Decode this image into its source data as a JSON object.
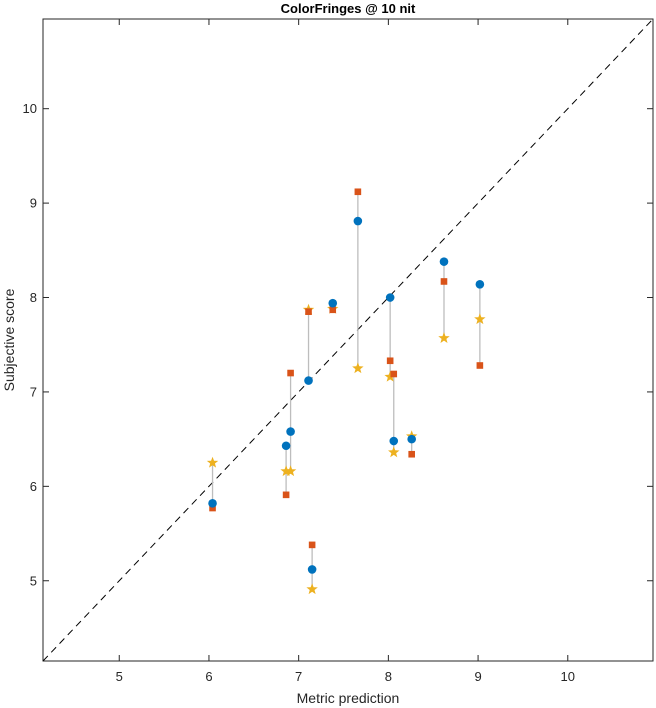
{
  "chart_data": {
    "type": "scatter",
    "title": "ColorFringes @ 10 nit",
    "xlabel": "Metric prediction",
    "ylabel": "Subjective score",
    "xlim": [
      4.15,
      10.95
    ],
    "ylim": [
      4.15,
      10.95
    ],
    "xticks": [
      5,
      6,
      7,
      8,
      9,
      10
    ],
    "yticks": [
      5,
      6,
      7,
      8,
      9,
      10
    ],
    "xtick_labels": [
      "5",
      "6",
      "7",
      "8",
      "9",
      "10"
    ],
    "ytick_labels": [
      "5",
      "6",
      "7",
      "8",
      "9",
      "10"
    ],
    "reference_line": {
      "style": "dashed",
      "color": "#000000",
      "from": [
        4.15,
        4.15
      ],
      "to": [
        10.95,
        10.95
      ]
    },
    "connector_color": "#bdbdbd",
    "grid": false,
    "legend": false,
    "points": [
      {
        "x": 6.04,
        "circle": 5.82,
        "square": 5.77,
        "star": 6.25
      },
      {
        "x": 6.86,
        "circle": 6.43,
        "square": 5.91,
        "star": 6.16
      },
      {
        "x": 6.91,
        "circle": 6.58,
        "square": 7.2,
        "star": 6.16
      },
      {
        "x": 7.11,
        "circle": 7.12,
        "square": 7.85,
        "star": 7.87
      },
      {
        "x": 7.15,
        "circle": 5.12,
        "square": 5.38,
        "star": 4.91
      },
      {
        "x": 7.38,
        "circle": 7.94,
        "square": 7.87,
        "star": 7.88
      },
      {
        "x": 7.66,
        "circle": 8.81,
        "square": 9.12,
        "star": 7.25
      },
      {
        "x": 8.02,
        "circle": 8.0,
        "square": 7.33,
        "star": 7.16
      },
      {
        "x": 8.06,
        "circle": 6.48,
        "square": 7.19,
        "star": 6.36
      },
      {
        "x": 8.26,
        "circle": 6.5,
        "square": 6.34,
        "star": 6.53
      },
      {
        "x": 8.62,
        "circle": 8.38,
        "square": 8.17,
        "star": 7.57
      },
      {
        "x": 9.02,
        "circle": 8.14,
        "square": 7.28,
        "star": 7.77
      }
    ],
    "marker_colors": {
      "circle": "#0072bd",
      "square": "#d95319",
      "star": "#edb120"
    }
  }
}
